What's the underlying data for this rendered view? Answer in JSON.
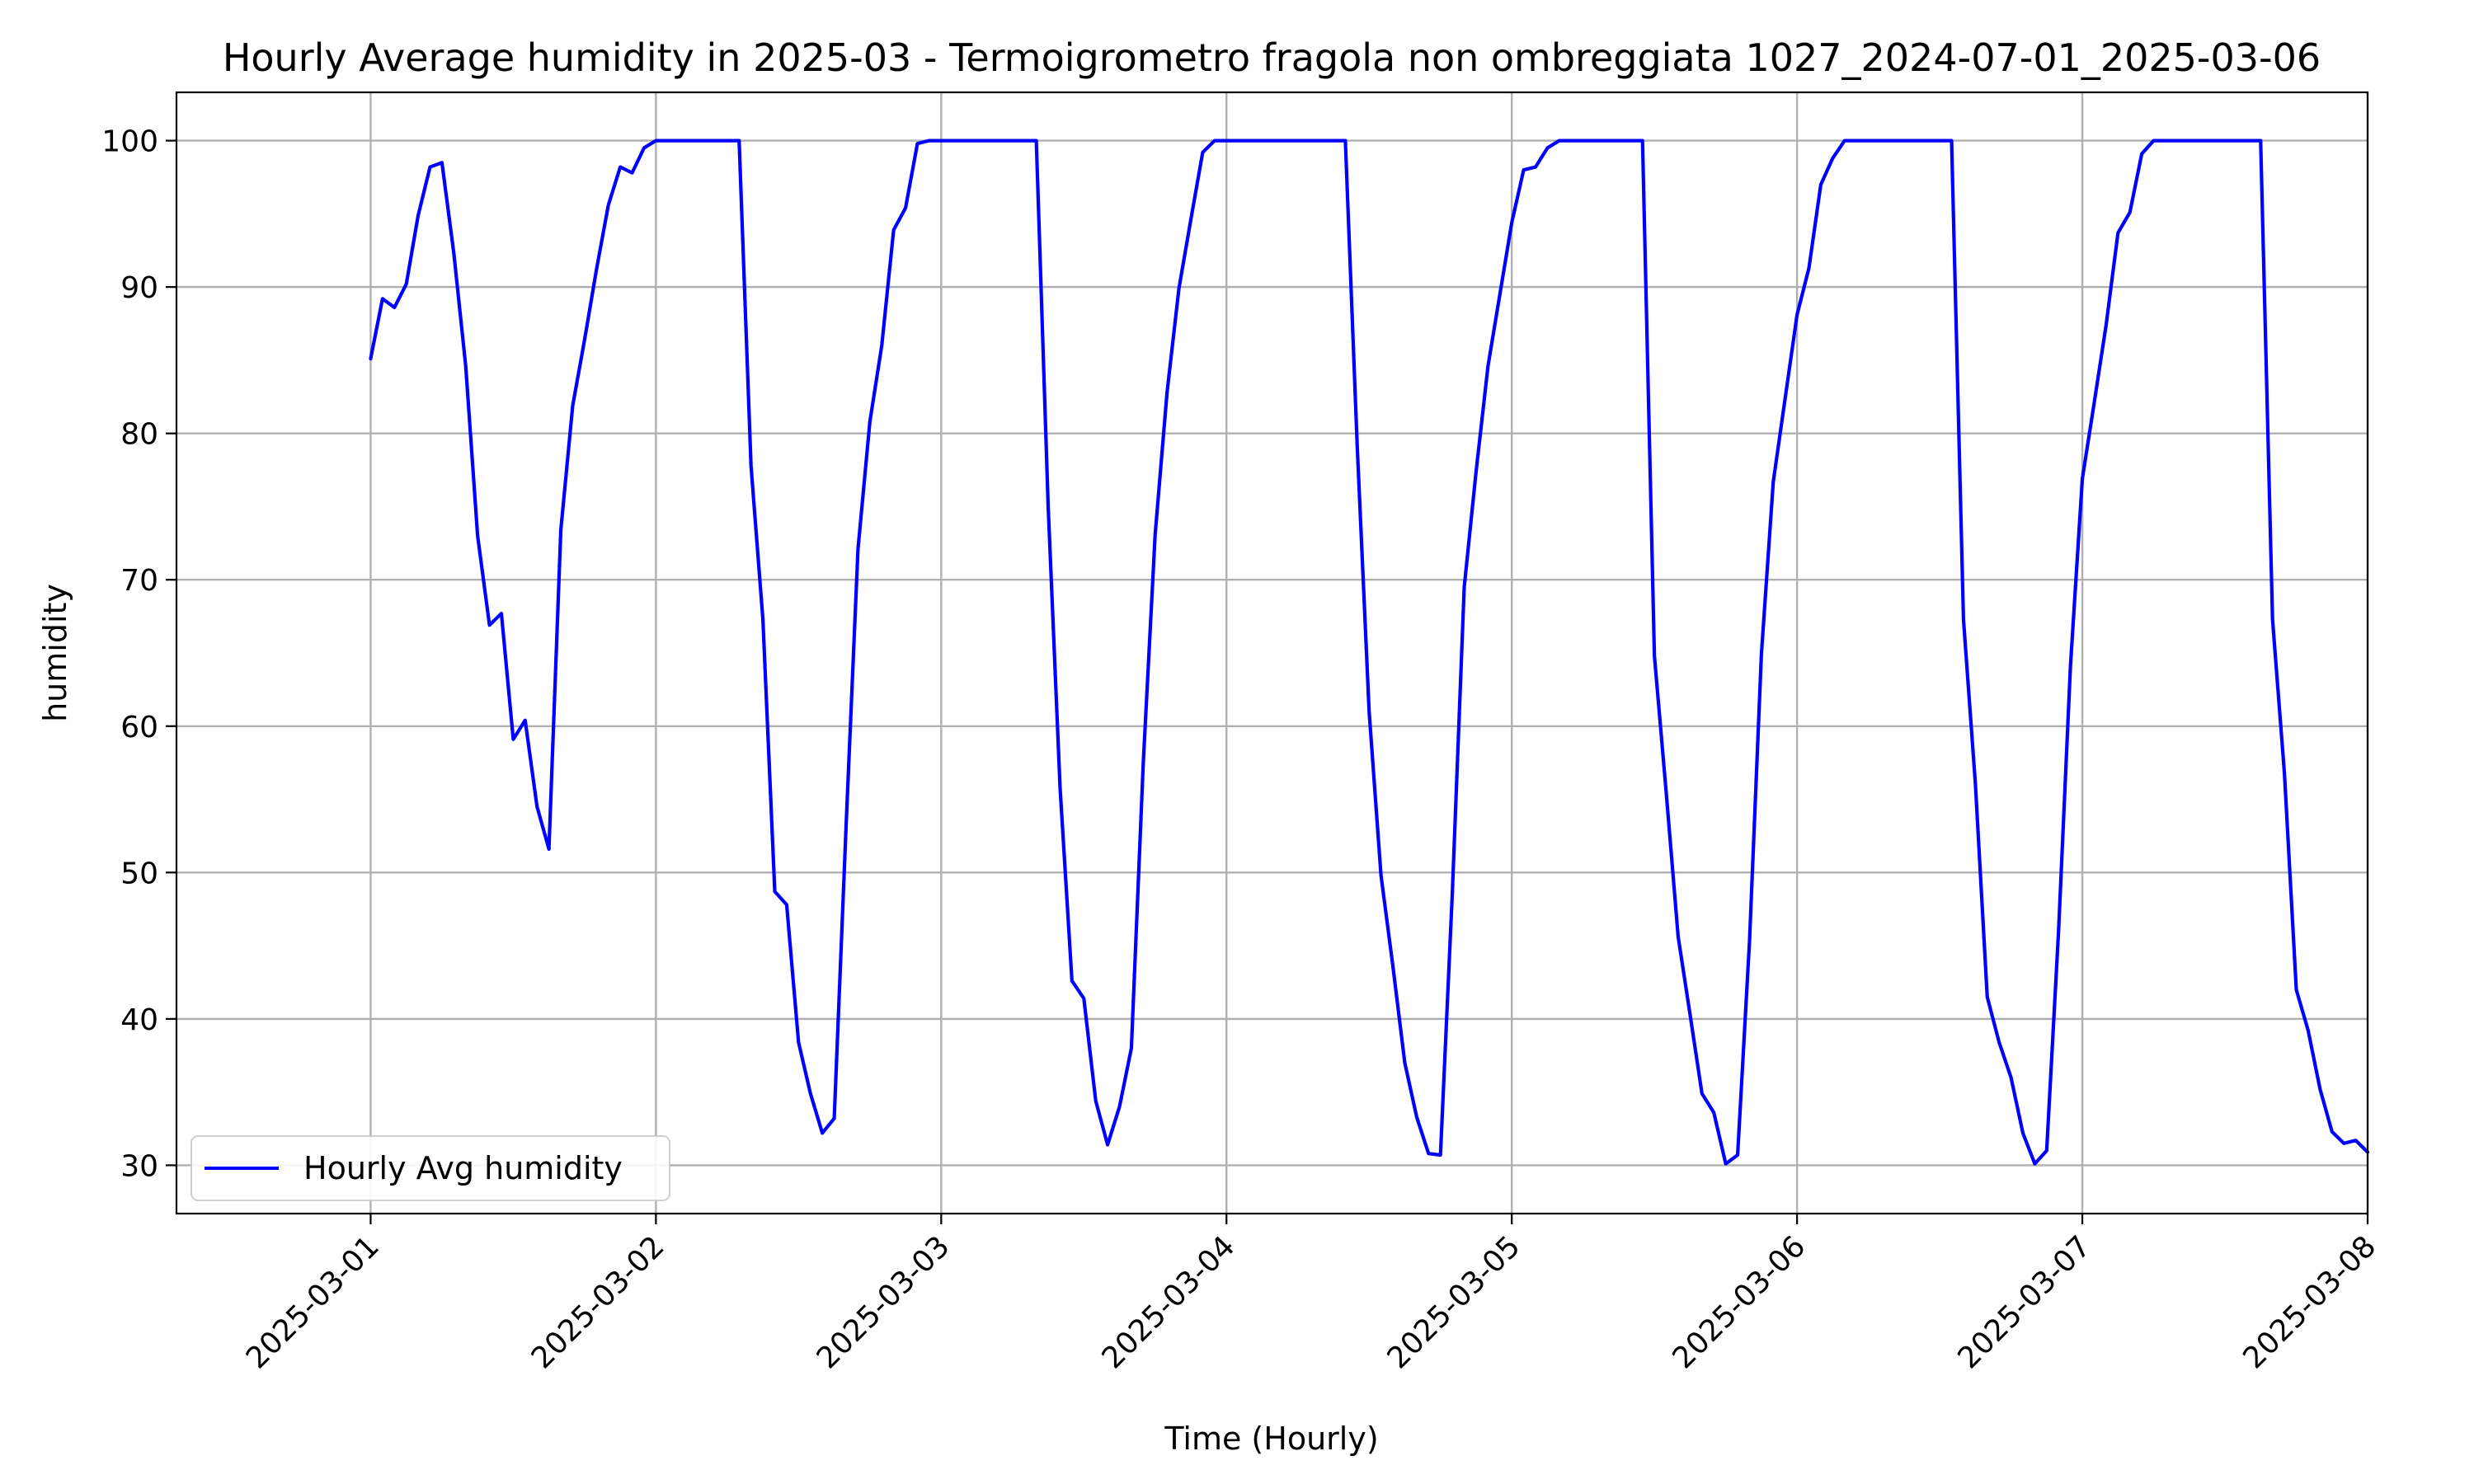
{
  "chart_data": {
    "type": "line",
    "title": "Hourly Average humidity in 2025-03 - Termoigrometro fragola non ombreggiata 1027_2024-07-01_2025-03-06",
    "xlabel": "Time (Hourly)",
    "ylabel": "humidity",
    "xlim": [
      "2025-02-28T07:40",
      "2025-03-08T00:00"
    ],
    "ylim": [
      26.7,
      103.3
    ],
    "x_ticks": [
      "2025-03-01",
      "2025-03-02",
      "2025-03-03",
      "2025-03-04",
      "2025-03-05",
      "2025-03-06",
      "2025-03-07",
      "2025-03-08"
    ],
    "y_ticks": [
      30,
      40,
      50,
      60,
      70,
      80,
      90,
      100
    ],
    "grid": true,
    "legend": {
      "position": "lower-left"
    },
    "colors": {
      "series": "#0000ff"
    },
    "x_start": "2025-03-01T00:00",
    "x_step_hours": 1,
    "series": [
      {
        "name": "Hourly Avg humidity",
        "values": [
          85.1,
          89.2,
          88.6,
          90.2,
          94.9,
          98.2,
          98.5,
          92.3,
          84.6,
          73.0,
          66.9,
          67.7,
          59.1,
          60.4,
          54.5,
          51.6,
          73.4,
          81.9,
          86.4,
          91.2,
          95.6,
          98.2,
          97.8,
          99.5,
          100,
          100,
          100,
          100,
          100,
          100,
          100,
          100,
          77.8,
          67.3,
          48.7,
          47.8,
          38.4,
          34.9,
          32.2,
          33.2,
          53.2,
          72.1,
          80.8,
          86.0,
          93.9,
          95.4,
          99.8,
          100,
          100,
          100,
          100,
          100,
          100,
          100,
          100,
          100,
          100,
          75.0,
          55.8,
          42.6,
          41.4,
          34.4,
          31.4,
          34.0,
          38.0,
          57.5,
          73.1,
          82.8,
          89.9,
          94.6,
          99.2,
          100,
          100,
          100,
          100,
          100,
          100,
          100,
          100,
          100,
          100,
          100,
          100,
          79.1,
          61.0,
          49.8,
          43.6,
          37.0,
          33.3,
          30.8,
          30.7,
          48.6,
          69.5,
          77.4,
          84.6,
          89.5,
          94.4,
          98.0,
          98.2,
          99.5,
          100,
          100,
          100,
          100,
          100,
          100,
          100,
          100,
          64.8,
          55.4,
          45.6,
          40.3,
          34.9,
          33.6,
          30.1,
          30.7,
          45.3,
          64.9,
          76.7,
          82.4,
          88.1,
          91.3,
          97.0,
          98.8,
          100,
          100,
          100,
          100,
          100,
          100,
          100,
          100,
          100,
          100,
          67.3,
          56.1,
          41.5,
          38.4,
          36.0,
          32.2,
          30.1,
          31.0,
          46.0,
          64.1,
          76.9,
          82.1,
          87.4,
          93.7,
          95.1,
          99.1,
          100,
          100,
          100,
          100,
          100,
          100,
          100,
          100,
          100,
          100,
          67.3,
          56.8,
          42.0,
          39.2,
          35.2,
          32.3,
          31.5,
          31.7,
          30.9
        ]
      }
    ]
  }
}
